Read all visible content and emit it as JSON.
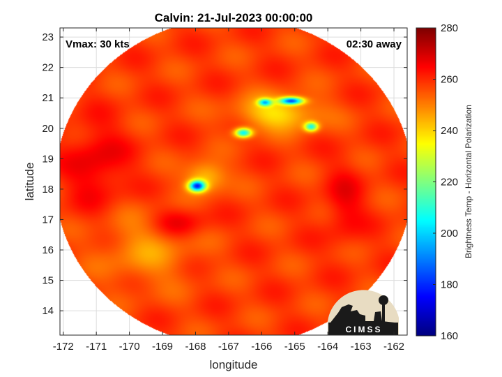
{
  "chart_data": {
    "type": "heatmap",
    "title": "Calvin: 21-Jul-2023 00:00:00",
    "xlabel": "longitude",
    "ylabel": "latitude",
    "xlim": [
      -172.1,
      -161.6
    ],
    "ylim": [
      13.2,
      23.3
    ],
    "xticks": [
      -172,
      -171,
      -170,
      -169,
      -168,
      -167,
      -166,
      -165,
      -164,
      -163,
      -162
    ],
    "yticks": [
      14,
      15,
      16,
      17,
      18,
      19,
      20,
      21,
      22,
      23
    ],
    "grid": true,
    "annotations": {
      "top_left": "Vmax: 30 kts",
      "top_right": "02:30 away"
    },
    "colorbar": {
      "label": "Brightness Temp - Horizontal Polarization",
      "min": 160,
      "max": 280,
      "ticks": [
        160,
        180,
        200,
        220,
        240,
        260,
        280
      ],
      "colormap": "jet"
    },
    "swath": {
      "center": [
        -166.85,
        18.25
      ],
      "radius_deg": 5.4
    },
    "background_value": 258,
    "features": [
      {
        "lon": -167.95,
        "lat": 18.1,
        "value": 188,
        "sx": 0.25,
        "sy": 0.18
      },
      {
        "lon": -166.55,
        "lat": 19.85,
        "value": 205,
        "sx": 0.25,
        "sy": 0.15
      },
      {
        "lon": -165.1,
        "lat": 20.9,
        "value": 192,
        "sx": 0.35,
        "sy": 0.12
      },
      {
        "lon": -165.9,
        "lat": 20.85,
        "value": 210,
        "sx": 0.2,
        "sy": 0.12
      },
      {
        "lon": -164.5,
        "lat": 20.05,
        "value": 212,
        "sx": 0.2,
        "sy": 0.15
      },
      {
        "lon": -165.5,
        "lat": 20.5,
        "value": 238,
        "sx": 1.2,
        "sy": 0.55
      },
      {
        "lon": -167.7,
        "lat": 18.4,
        "value": 240,
        "sx": 0.6,
        "sy": 0.5
      },
      {
        "lon": -169.5,
        "lat": 16.0,
        "value": 248,
        "sx": 1.4,
        "sy": 1.2
      },
      {
        "lon": -171.0,
        "lat": 18.8,
        "value": 268,
        "sx": 0.9,
        "sy": 1.3
      },
      {
        "lon": -168.5,
        "lat": 16.9,
        "value": 268,
        "sx": 0.8,
        "sy": 0.5
      },
      {
        "lon": -163.5,
        "lat": 17.5,
        "value": 266,
        "sx": 0.6,
        "sy": 1.2
      }
    ]
  },
  "logo": {
    "text": "CIMSS"
  },
  "colors": {
    "axis": "#262626",
    "grid": "#dcdcdc",
    "logo_bg": "#e8dcc2",
    "logo_fg": "#1a1a1a"
  }
}
